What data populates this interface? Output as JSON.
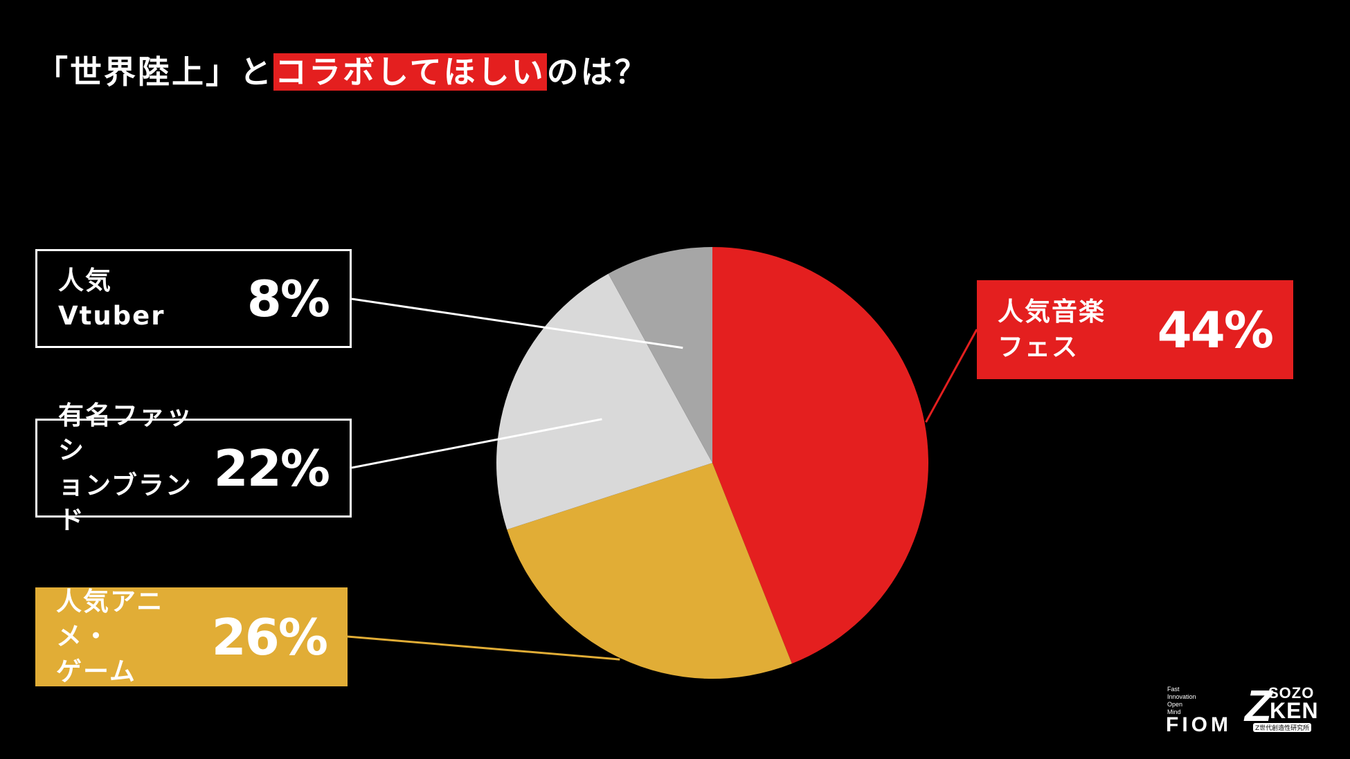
{
  "title": {
    "prefix": "「世界陸上」と",
    "highlight": "コラボしてほしい",
    "suffix": "のは？",
    "highlight_color": "#e41f1f"
  },
  "chart_data": {
    "type": "pie",
    "title": "「世界陸上」とコラボしてほしいのは？",
    "start_angle_deg": 0,
    "direction": "clockwise",
    "slices": [
      {
        "label": "人気音楽\nフェス",
        "value": 44,
        "display": "44%",
        "color": "#e41f1f"
      },
      {
        "label": "人気アニメ・\nゲーム",
        "value": 26,
        "display": "26%",
        "color": "#e1ad36"
      },
      {
        "label": "有名ファッシ\nョンブランド",
        "value": 22,
        "display": "22%",
        "color": "#d9d9d9"
      },
      {
        "label": "人気\nVtuber",
        "value": 8,
        "display": "8%",
        "color": "#a6a6a6"
      }
    ]
  },
  "logos": {
    "fiom_tagline": "Fast\nInnovation\nOpen\nMind",
    "fiom_name": "FIOM",
    "z_letter": "Z",
    "z_sozo": "SOZO",
    "z_ken": "KEN",
    "z_sub": "Z世代創造性研究所"
  }
}
